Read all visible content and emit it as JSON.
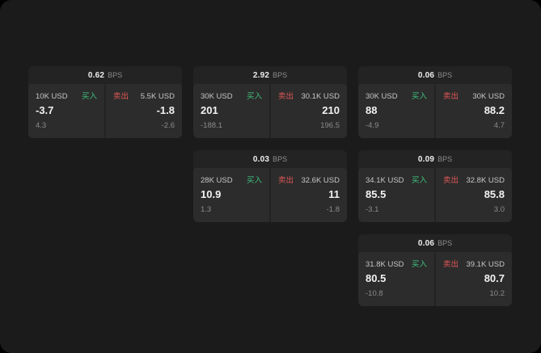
{
  "colors": {
    "background": "#1b1b1b",
    "card_bg": "#232323",
    "panel_bg": "#2c2c2c",
    "buy_green": "#3ec07c",
    "sell_red": "#e25757",
    "text_primary": "#f2f2f2",
    "text_secondary": "#8b8b8b"
  },
  "bps_unit": "BPS",
  "cards": [
    {
      "bps": "0.62",
      "unit": "BPS",
      "buy": {
        "amount": "10K USD",
        "label": "买入",
        "price": "-3.7",
        "delta": "4.3"
      },
      "sell": {
        "amount": "5.5K USD",
        "label": "卖出",
        "price": "-1.8",
        "delta": "-2.6"
      }
    },
    {
      "bps": "2.92",
      "unit": "BPS",
      "buy": {
        "amount": "30K USD",
        "label": "买入",
        "price": "201",
        "delta": "-188.1"
      },
      "sell": {
        "amount": "30.1K USD",
        "label": "卖出",
        "price": "210",
        "delta": "196.5"
      }
    },
    {
      "bps": "0.06",
      "unit": "BPS",
      "buy": {
        "amount": "30K USD",
        "label": "买入",
        "price": "88",
        "delta": "-4.9"
      },
      "sell": {
        "amount": "30K USD",
        "label": "卖出",
        "price": "88.2",
        "delta": "4.7"
      }
    },
    {
      "bps": "0.03",
      "unit": "BPS",
      "buy": {
        "amount": "28K USD",
        "label": "买入",
        "price": "10.9",
        "delta": "1.3"
      },
      "sell": {
        "amount": "32.6K USD",
        "label": "卖出",
        "price": "11",
        "delta": "-1.8"
      }
    },
    {
      "bps": "0.09",
      "unit": "BPS",
      "buy": {
        "amount": "34.1K USD",
        "label": "买入",
        "price": "85.5",
        "delta": "-3.1"
      },
      "sell": {
        "amount": "32.8K USD",
        "label": "卖出",
        "price": "85.8",
        "delta": "3.0"
      }
    },
    {
      "bps": "0.06",
      "unit": "BPS",
      "buy": {
        "amount": "31.8K USD",
        "label": "买入",
        "price": "80.5",
        "delta": "-10.8"
      },
      "sell": {
        "amount": "39.1K USD",
        "label": "卖出",
        "price": "80.7",
        "delta": "10.2"
      }
    }
  ]
}
